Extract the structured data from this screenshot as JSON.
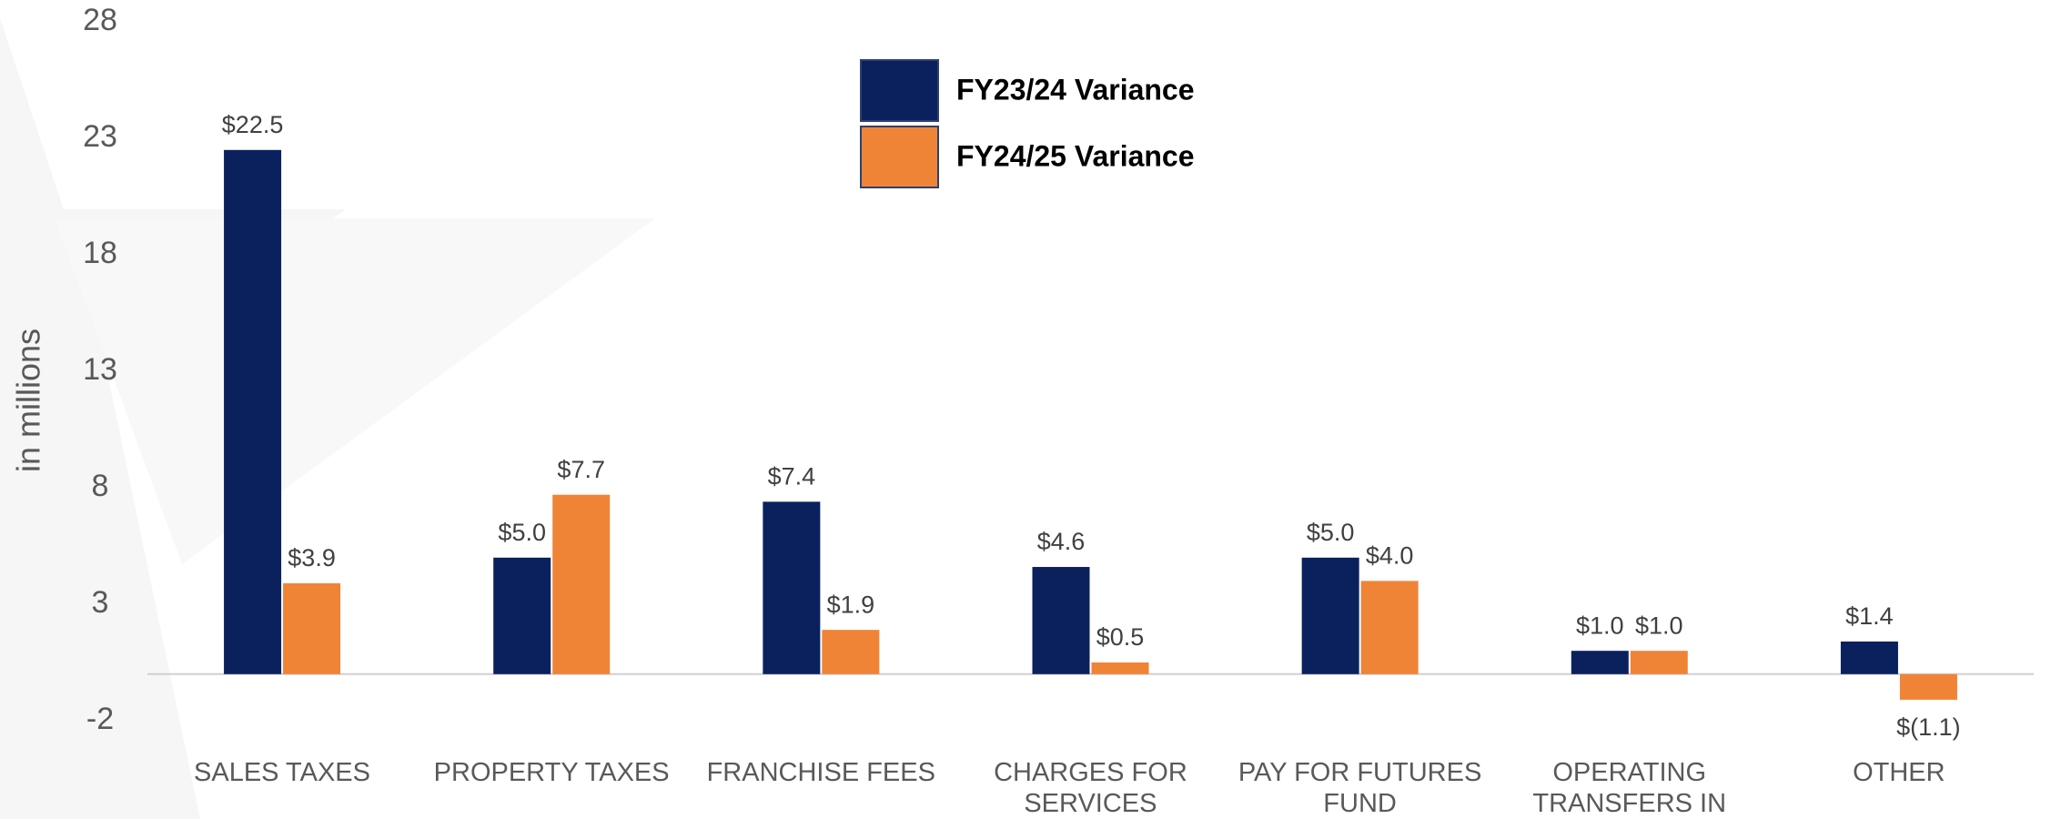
{
  "chart_data": {
    "type": "bar",
    "y_label": "in millions",
    "categories": [
      "SALES TAXES",
      "PROPERTY TAXES",
      "FRANCHISE FEES",
      "CHARGES FOR SERVICES",
      "PAY FOR FUTURES FUND",
      "OPERATING TRANSFERS IN",
      "OTHER"
    ],
    "series": [
      {
        "name": "FY23/24 Variance",
        "color": "#0a215e",
        "values": [
          22.5,
          5.0,
          7.4,
          4.6,
          5.0,
          1.0,
          1.4
        ],
        "value_labels": [
          "$22.5",
          "$5.0",
          "$7.4",
          "$4.6",
          "$5.0",
          "$1.0",
          "$1.4"
        ]
      },
      {
        "name": "FY24/25 Variance",
        "color": "#ef8437",
        "values": [
          3.9,
          7.7,
          1.9,
          0.5,
          4.0,
          1.0,
          -1.1
        ],
        "value_labels": [
          "$3.9",
          "$7.7",
          "$1.9",
          "$0.5",
          "$4.0",
          "$1.0",
          "$(1.1)"
        ]
      }
    ],
    "ylim": [
      -2,
      28
    ],
    "yticks": [
      -2,
      3,
      8,
      13,
      18,
      23,
      28
    ],
    "grid": false,
    "legend": "top"
  }
}
